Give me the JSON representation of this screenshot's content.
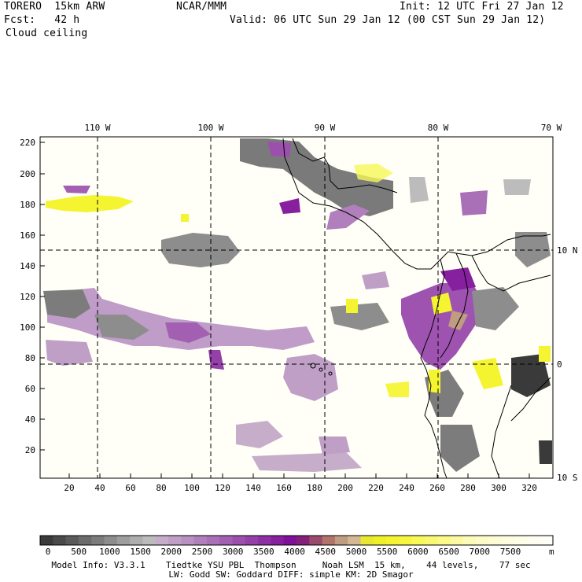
{
  "header": {
    "model": "TORERO  15km ARW",
    "source": "NCAR/MMM",
    "init": "Init: 12 UTC Fri 27 Jan 12",
    "fcst": "Fcst:   42 h",
    "valid": "Valid: 06 UTC Sun 29 Jan 12 (00 CST Sun 29 Jan 12)",
    "field": "Cloud ceiling"
  },
  "map": {
    "top_lon_labels": [
      "110 W",
      "100 W",
      "90 W",
      "80 W",
      "70 W"
    ],
    "right_lat_labels": [
      "10 N",
      "0",
      "10 S"
    ],
    "y_ticks": [
      "220",
      "200",
      "180",
      "160",
      "140",
      "120",
      "100",
      "80",
      "60",
      "40",
      "20"
    ],
    "x_ticks": [
      "20",
      "40",
      "60",
      "80",
      "100",
      "120",
      "140",
      "160",
      "180",
      "200",
      "220",
      "240",
      "260",
      "280",
      "300",
      "320"
    ]
  },
  "legend": {
    "labels": [
      "0",
      "500",
      "1000",
      "1500",
      "2000",
      "2500",
      "3000",
      "3500",
      "4000",
      "4500",
      "5000",
      "5500",
      "6000",
      "6500",
      "7000",
      "7500"
    ],
    "unit": "m",
    "colors": [
      "#3a3a3a",
      "#4a4a4a",
      "#5a5a5a",
      "#6b6b6b",
      "#7c7c7c",
      "#8d8d8d",
      "#9e9e9e",
      "#aeaeae",
      "#bcbcbc",
      "#c6aecb",
      "#bf9fc6",
      "#b890c1",
      "#b180bc",
      "#aa70b7",
      "#a360b2",
      "#9c50ad",
      "#9540a8",
      "#8e30a3",
      "#87209e",
      "#801099",
      "#85207a",
      "#9a4a6a",
      "#b0746a",
      "#c09c80",
      "#d4b894",
      "#e8e830",
      "#f0f028",
      "#f4f430",
      "#f6f640",
      "#f8f858",
      "#faf870",
      "#fbf988",
      "#fcfaa0",
      "#fdfbb8",
      "#fdfcc8",
      "#fdfcd4",
      "#fefde0",
      "#fefde8",
      "#fefef0",
      "#fefef6"
    ]
  },
  "footer": {
    "line1": "Model Info: V3.3.1    Tiedtke YSU PBL  Thompson     Noah LSM  15 km,    44 levels,    77 sec",
    "line2": "LW: Godd SW: Goddard DIFF: simple KM: 2D Smagor"
  }
}
